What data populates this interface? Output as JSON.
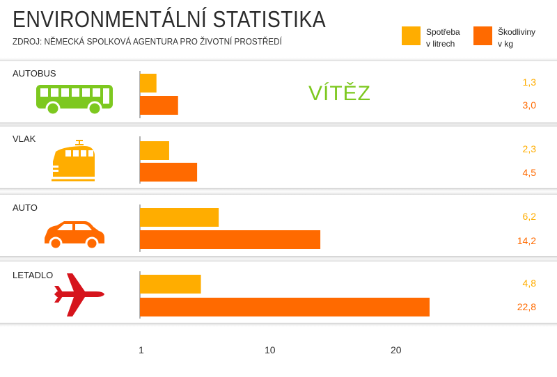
{
  "header": {
    "title": "ENVIRONMENTÁLNÍ STATISTIKA",
    "source": "ZDROJ: NĚMECKÁ SPOLKOVÁ AGENTURA PRO ŽIVOTNÍ PROSTŘEDÍ"
  },
  "legend": [
    {
      "label_line1": "Spotřeba",
      "label_line2": "v litrech",
      "color": "#ffad00"
    },
    {
      "label_line1": "Škodliviny",
      "label_line2": "v kg",
      "color": "#ff6a00"
    }
  ],
  "winner_label": "VÍTĚZ",
  "icons": [
    "bus-icon",
    "train-icon",
    "car-icon",
    "airplane-icon"
  ],
  "chart_data": {
    "type": "bar",
    "orientation": "horizontal",
    "categories": [
      "AUTOBUS",
      "VLAK",
      "AUTO",
      "LETADLO"
    ],
    "series": [
      {
        "name": "Spotřeba v litrech",
        "values": [
          1.3,
          2.3,
          6.2,
          4.8
        ],
        "labels": [
          "1,3",
          "2,3",
          "6,2",
          "4,8"
        ],
        "color": "#ffad00"
      },
      {
        "name": "Škodliviny v kg",
        "values": [
          3.0,
          4.5,
          14.2,
          22.8
        ],
        "labels": [
          "3,0",
          "4,5",
          "14,2",
          "22,8"
        ],
        "color": "#ff6a00"
      }
    ],
    "xticks": [
      "1",
      "10",
      "20"
    ],
    "xtick_values": [
      1,
      10,
      20
    ],
    "xlim": [
      0,
      23
    ],
    "legend_position": "top-right",
    "grid": false
  }
}
